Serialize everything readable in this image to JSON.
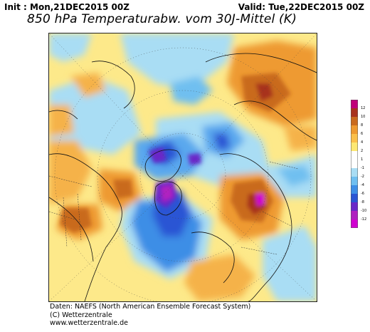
{
  "header": {
    "init": "Init : Mon,21DEC2015 00Z",
    "valid": "Valid: Tue,22DEC2015 00Z",
    "title": "850 hPa Temperaturabw. vom 30J-Mittel (K)"
  },
  "colorbar": {
    "labels": [
      "12",
      "10",
      "8",
      "6",
      "4",
      "2",
      "1",
      "-1",
      "-2",
      "-4",
      "-6",
      "-8",
      "-10",
      "-12"
    ],
    "colors": [
      "#c0007a",
      "#a8321e",
      "#c96a1e",
      "#ee9a30",
      "#fbc04a",
      "#fde872",
      "#ffffff",
      "#ffffff",
      "#a9ddf4",
      "#6fbff0",
      "#3d8ee6",
      "#2a55d4",
      "#6a28c8",
      "#b020c0",
      "#d000d0"
    ]
  },
  "footer": {
    "line1": "Daten: NAEFS (North American Ensemble Forecast System)",
    "line2": "(C) Wetterzentrale",
    "line3": "www.wetterzentrale.de"
  }
}
